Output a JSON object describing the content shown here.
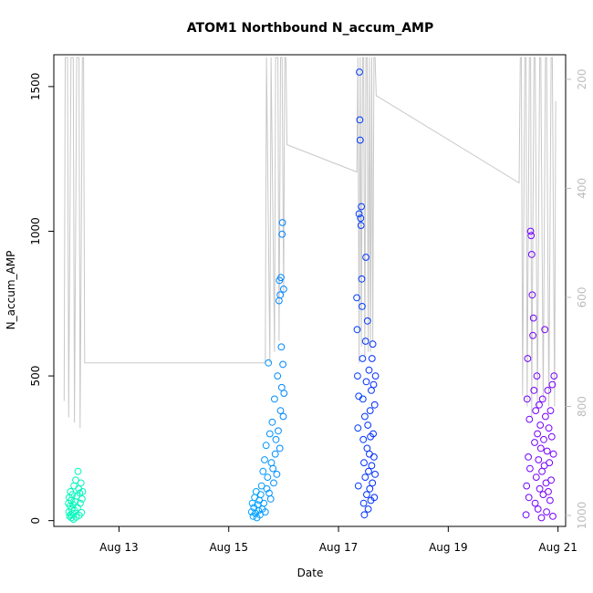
{
  "chart_data": {
    "type": "scatter",
    "title": "ATOM1 Northbound N_accum_AMP",
    "xlabel": "Date",
    "ylabel": "N_accum_AMP",
    "xlim": [
      "2024-08-11T19:30",
      "2024-08-21T03:20"
    ],
    "ylim": [
      -20,
      1610
    ],
    "x_ticks": [
      "2024-08-13",
      "2024-08-15",
      "2024-08-17",
      "2024-08-19",
      "2024-08-21"
    ],
    "x_tick_labels": [
      "Aug 13",
      "Aug 15",
      "Aug 17",
      "Aug 19",
      "Aug 21"
    ],
    "y_ticks": [
      0,
      500,
      1000,
      1500
    ],
    "y2_lim": [
      1020,
      155
    ],
    "y2_ticks": [
      200,
      400,
      600,
      800,
      1000
    ],
    "grid": false,
    "legend": "none",
    "color_scale": [
      "#00ffb0",
      "#00c8ff",
      "#0028ff",
      "#7800ff"
    ],
    "series": [
      {
        "kind": "points",
        "points": [
          [
            "2024-08-12T01:55",
            60
          ],
          [
            "2024-08-12T02:05",
            30
          ],
          [
            "2024-08-12T02:15",
            80
          ],
          [
            "2024-08-12T02:25",
            15
          ],
          [
            "2024-08-12T02:35",
            50
          ],
          [
            "2024-08-12T02:45",
            100
          ],
          [
            "2024-08-12T02:55",
            20
          ],
          [
            "2024-08-12T03:05",
            70
          ],
          [
            "2024-08-12T03:15",
            10
          ],
          [
            "2024-08-12T03:25",
            40
          ],
          [
            "2024-08-12T03:35",
            90
          ],
          [
            "2024-08-12T03:45",
            25
          ],
          [
            "2024-08-12T03:55",
            55
          ],
          [
            "2024-08-12T04:05",
            5
          ],
          [
            "2024-08-12T04:20",
            120
          ],
          [
            "2024-08-12T04:35",
            35
          ],
          [
            "2024-08-12T04:50",
            65
          ],
          [
            "2024-08-12T05:05",
            140
          ],
          [
            "2024-08-12T05:20",
            12
          ],
          [
            "2024-08-12T05:35",
            85
          ],
          [
            "2024-08-12T05:50",
            45
          ],
          [
            "2024-08-12T06:05",
            170
          ],
          [
            "2024-08-12T06:20",
            110
          ],
          [
            "2024-08-12T06:35",
            18
          ],
          [
            "2024-08-12T06:50",
            95
          ],
          [
            "2024-08-12T07:05",
            60
          ],
          [
            "2024-08-12T07:20",
            130
          ],
          [
            "2024-08-12T07:35",
            28
          ],
          [
            "2024-08-12T07:50",
            75
          ],
          [
            "2024-08-12T08:05",
            100
          ]
        ]
      },
      {
        "kind": "points",
        "points": [
          [
            "2024-08-15T10:00",
            30
          ],
          [
            "2024-08-15T10:20",
            60
          ],
          [
            "2024-08-15T10:40",
            15
          ],
          [
            "2024-08-15T11:00",
            45
          ],
          [
            "2024-08-15T11:20",
            80
          ],
          [
            "2024-08-15T11:40",
            25
          ],
          [
            "2024-08-15T12:00",
            100
          ],
          [
            "2024-08-15T12:20",
            10
          ],
          [
            "2024-08-15T12:40",
            55
          ],
          [
            "2024-08-15T13:00",
            35
          ],
          [
            "2024-08-15T13:20",
            70
          ],
          [
            "2024-08-15T13:40",
            20
          ],
          [
            "2024-08-15T14:00",
            90
          ],
          [
            "2024-08-15T14:20",
            120
          ],
          [
            "2024-08-15T14:40",
            40
          ],
          [
            "2024-08-15T15:00",
            170
          ],
          [
            "2024-08-15T15:20",
            60
          ],
          [
            "2024-08-15T15:40",
            210
          ],
          [
            "2024-08-15T16:00",
            30
          ],
          [
            "2024-08-15T16:20",
            260
          ],
          [
            "2024-08-15T16:40",
            110
          ],
          [
            "2024-08-15T17:00",
            150
          ],
          [
            "2024-08-15T17:20",
            545
          ],
          [
            "2024-08-15T17:40",
            95
          ],
          [
            "2024-08-15T18:00",
            300
          ],
          [
            "2024-08-15T18:20",
            75
          ],
          [
            "2024-08-15T18:40",
            200
          ],
          [
            "2024-08-15T19:00",
            340
          ],
          [
            "2024-08-15T19:20",
            180
          ],
          [
            "2024-08-15T19:40",
            130
          ],
          [
            "2024-08-15T20:00",
            420
          ],
          [
            "2024-08-15T20:20",
            230
          ],
          [
            "2024-08-15T20:40",
            280
          ],
          [
            "2024-08-15T21:00",
            160
          ],
          [
            "2024-08-15T21:20",
            500
          ],
          [
            "2024-08-15T21:40",
            310
          ],
          [
            "2024-08-15T22:00",
            760
          ],
          [
            "2024-08-15T22:10",
            830
          ],
          [
            "2024-08-15T22:20",
            250
          ],
          [
            "2024-08-15T22:30",
            780
          ],
          [
            "2024-08-15T22:40",
            380
          ],
          [
            "2024-08-15T22:50",
            840
          ],
          [
            "2024-08-15T23:00",
            600
          ],
          [
            "2024-08-15T23:10",
            460
          ],
          [
            "2024-08-15T23:20",
            990
          ],
          [
            "2024-08-15T23:30",
            1030
          ],
          [
            "2024-08-15T23:40",
            540
          ],
          [
            "2024-08-15T23:50",
            360
          ],
          [
            "2024-08-16T00:00",
            800
          ],
          [
            "2024-08-16T00:10",
            440
          ]
        ]
      },
      {
        "kind": "points",
        "points": [
          [
            "2024-08-17T08:00",
            770
          ],
          [
            "2024-08-17T08:10",
            660
          ],
          [
            "2024-08-17T08:20",
            500
          ],
          [
            "2024-08-17T08:30",
            320
          ],
          [
            "2024-08-17T08:40",
            120
          ],
          [
            "2024-08-17T08:50",
            430
          ],
          [
            "2024-08-17T09:00",
            1060
          ],
          [
            "2024-08-17T09:10",
            1550
          ],
          [
            "2024-08-17T09:20",
            1385
          ],
          [
            "2024-08-17T09:30",
            1315
          ],
          [
            "2024-08-17T09:40",
            1045
          ],
          [
            "2024-08-17T09:50",
            1020
          ],
          [
            "2024-08-17T10:00",
            1085
          ],
          [
            "2024-08-17T10:10",
            835
          ],
          [
            "2024-08-17T10:20",
            740
          ],
          [
            "2024-08-17T10:30",
            560
          ],
          [
            "2024-08-17T10:40",
            420
          ],
          [
            "2024-08-17T10:50",
            280
          ],
          [
            "2024-08-17T11:00",
            60
          ],
          [
            "2024-08-17T11:10",
            200
          ],
          [
            "2024-08-17T11:20",
            20
          ],
          [
            "2024-08-17T11:30",
            360
          ],
          [
            "2024-08-17T11:40",
            150
          ],
          [
            "2024-08-17T11:50",
            620
          ],
          [
            "2024-08-17T12:00",
            910
          ],
          [
            "2024-08-17T12:10",
            480
          ],
          [
            "2024-08-17T12:20",
            90
          ],
          [
            "2024-08-17T12:30",
            250
          ],
          [
            "2024-08-17T12:40",
            690
          ],
          [
            "2024-08-17T12:50",
            330
          ],
          [
            "2024-08-17T13:00",
            40
          ],
          [
            "2024-08-17T13:10",
            170
          ],
          [
            "2024-08-17T13:20",
            520
          ],
          [
            "2024-08-17T13:30",
            230
          ],
          [
            "2024-08-17T13:40",
            110
          ],
          [
            "2024-08-17T13:50",
            380
          ],
          [
            "2024-08-17T14:00",
            290
          ],
          [
            "2024-08-17T14:10",
            70
          ],
          [
            "2024-08-17T14:20",
            450
          ],
          [
            "2024-08-17T14:30",
            190
          ],
          [
            "2024-08-17T14:40",
            560
          ],
          [
            "2024-08-17T14:50",
            130
          ],
          [
            "2024-08-17T15:00",
            610
          ],
          [
            "2024-08-17T15:10",
            300
          ],
          [
            "2024-08-17T15:20",
            470
          ],
          [
            "2024-08-17T15:30",
            220
          ],
          [
            "2024-08-17T15:40",
            80
          ],
          [
            "2024-08-17T15:50",
            400
          ],
          [
            "2024-08-17T16:00",
            160
          ],
          [
            "2024-08-17T16:10",
            500
          ]
        ]
      },
      {
        "kind": "points",
        "points": [
          [
            "2024-08-20T10:00",
            20
          ],
          [
            "2024-08-20T10:15",
            120
          ],
          [
            "2024-08-20T10:30",
            420
          ],
          [
            "2024-08-20T10:45",
            560
          ],
          [
            "2024-08-20T11:00",
            220
          ],
          [
            "2024-08-20T11:15",
            80
          ],
          [
            "2024-08-20T11:30",
            350
          ],
          [
            "2024-08-20T11:45",
            180
          ],
          [
            "2024-08-20T12:00",
            1000
          ],
          [
            "2024-08-20T12:15",
            985
          ],
          [
            "2024-08-20T12:30",
            920
          ],
          [
            "2024-08-20T12:45",
            780
          ],
          [
            "2024-08-20T13:00",
            640
          ],
          [
            "2024-08-20T13:15",
            700
          ],
          [
            "2024-08-20T13:30",
            450
          ],
          [
            "2024-08-20T13:45",
            270
          ],
          [
            "2024-08-20T14:00",
            60
          ],
          [
            "2024-08-20T14:15",
            380
          ],
          [
            "2024-08-20T14:30",
            150
          ],
          [
            "2024-08-20T14:45",
            500
          ],
          [
            "2024-08-20T15:00",
            300
          ],
          [
            "2024-08-20T15:15",
            40
          ],
          [
            "2024-08-20T15:30",
            210
          ],
          [
            "2024-08-20T15:45",
            400
          ],
          [
            "2024-08-20T16:00",
            110
          ],
          [
            "2024-08-20T16:15",
            330
          ],
          [
            "2024-08-20T16:30",
            250
          ],
          [
            "2024-08-20T16:45",
            10
          ],
          [
            "2024-08-20T17:00",
            170
          ],
          [
            "2024-08-20T17:15",
            420
          ],
          [
            "2024-08-20T17:30",
            90
          ],
          [
            "2024-08-20T17:45",
            280
          ],
          [
            "2024-08-20T18:00",
            190
          ],
          [
            "2024-08-20T18:15",
            660
          ],
          [
            "2024-08-20T18:30",
            360
          ],
          [
            "2024-08-20T18:45",
            130
          ],
          [
            "2024-08-20T19:00",
            30
          ],
          [
            "2024-08-20T19:15",
            240
          ],
          [
            "2024-08-20T19:30",
            450
          ],
          [
            "2024-08-20T19:45",
            100
          ],
          [
            "2024-08-20T20:00",
            320
          ],
          [
            "2024-08-20T20:15",
            200
          ],
          [
            "2024-08-20T20:30",
            70
          ],
          [
            "2024-08-20T20:45",
            380
          ],
          [
            "2024-08-20T21:00",
            140
          ],
          [
            "2024-08-20T21:15",
            290
          ],
          [
            "2024-08-20T21:30",
            470
          ],
          [
            "2024-08-20T21:45",
            15
          ],
          [
            "2024-08-20T22:00",
            230
          ],
          [
            "2024-08-20T22:15",
            500
          ]
        ]
      },
      {
        "kind": "depth_line",
        "axis": "right",
        "points": [
          [
            "2024-08-12T00:00",
            790
          ],
          [
            "2024-08-12T00:30",
            160
          ],
          [
            "2024-08-12T01:30",
            160
          ],
          [
            "2024-08-12T02:00",
            820
          ],
          [
            "2024-08-12T03:00",
            160
          ],
          [
            "2024-08-12T04:00",
            160
          ],
          [
            "2024-08-12T04:30",
            830
          ],
          [
            "2024-08-12T05:30",
            160
          ],
          [
            "2024-08-12T06:30",
            160
          ],
          [
            "2024-08-12T07:00",
            840
          ],
          [
            "2024-08-12T08:00",
            160
          ],
          [
            "2024-08-12T08:30",
            160
          ],
          [
            "2024-08-12T09:00",
            720
          ],
          [
            "2024-08-15T16:00",
            720
          ],
          [
            "2024-08-15T16:30",
            160
          ],
          [
            "2024-08-15T18:00",
            720
          ],
          [
            "2024-08-15T18:30",
            160
          ],
          [
            "2024-08-15T20:00",
            700
          ],
          [
            "2024-08-15T20:30",
            160
          ],
          [
            "2024-08-15T21:30",
            160
          ],
          [
            "2024-08-15T22:00",
            680
          ],
          [
            "2024-08-15T22:40",
            160
          ],
          [
            "2024-08-15T23:20",
            160
          ],
          [
            "2024-08-16T00:00",
            600
          ],
          [
            "2024-08-16T00:30",
            160
          ],
          [
            "2024-08-16T01:00",
            160
          ],
          [
            "2024-08-16T01:30",
            320
          ],
          [
            "2024-08-17T08:00",
            370
          ],
          [
            "2024-08-17T08:30",
            160
          ],
          [
            "2024-08-17T09:00",
            720
          ],
          [
            "2024-08-17T09:30",
            160
          ],
          [
            "2024-08-17T10:00",
            690
          ],
          [
            "2024-08-17T10:30",
            160
          ],
          [
            "2024-08-17T11:00",
            160
          ],
          [
            "2024-08-17T11:30",
            710
          ],
          [
            "2024-08-17T12:00",
            160
          ],
          [
            "2024-08-17T12:30",
            160
          ],
          [
            "2024-08-17T13:00",
            700
          ],
          [
            "2024-08-17T13:30",
            160
          ],
          [
            "2024-08-17T14:00",
            700
          ],
          [
            "2024-08-17T14:30",
            160
          ],
          [
            "2024-08-17T15:00",
            680
          ],
          [
            "2024-08-17T15:30",
            160
          ],
          [
            "2024-08-17T16:00",
            160
          ],
          [
            "2024-08-17T16:30",
            230
          ],
          [
            "2024-08-20T07:00",
            390
          ],
          [
            "2024-08-20T07:30",
            160
          ],
          [
            "2024-08-20T08:00",
            160
          ],
          [
            "2024-08-20T08:30",
            780
          ],
          [
            "2024-08-20T09:30",
            160
          ],
          [
            "2024-08-20T10:00",
            160
          ],
          [
            "2024-08-20T10:30",
            800
          ],
          [
            "2024-08-20T11:30",
            160
          ],
          [
            "2024-08-20T12:00",
            160
          ],
          [
            "2024-08-20T12:30",
            820
          ],
          [
            "2024-08-20T13:30",
            160
          ],
          [
            "2024-08-20T14:00",
            160
          ],
          [
            "2024-08-20T15:00",
            800
          ],
          [
            "2024-08-20T16:00",
            160
          ],
          [
            "2024-08-20T16:30",
            160
          ],
          [
            "2024-08-20T17:30",
            790
          ],
          [
            "2024-08-20T18:30",
            160
          ],
          [
            "2024-08-20T19:00",
            160
          ],
          [
            "2024-08-20T20:00",
            800
          ],
          [
            "2024-08-20T21:00",
            160
          ],
          [
            "2024-08-20T21:30",
            160
          ],
          [
            "2024-08-20T22:30",
            800
          ],
          [
            "2024-08-20T23:00",
            240
          ]
        ]
      }
    ]
  }
}
